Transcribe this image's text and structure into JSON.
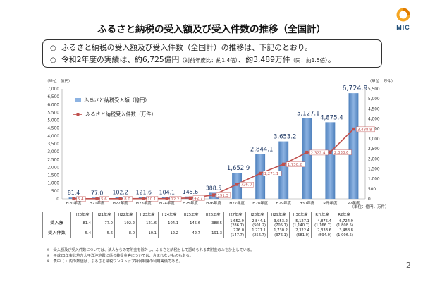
{
  "logo": {
    "text": "MIC"
  },
  "title": "ふるさと納税の受入額及び受入件数の推移（全国計）",
  "summary": [
    {
      "mark": "○",
      "text": "ふるさと納税の受入額及び受入件数（全国計）の推移は、下記のとおり。"
    },
    {
      "mark": "○",
      "text": "令和2年度の実績は、約6,725億円",
      "sub1": "（対前年度比：約1.4倍）",
      "text2": "、約3,489万件",
      "sub2": "（同：約1.5倍）",
      "text3": "。"
    }
  ],
  "chart_data": {
    "type": "bar",
    "categories": [
      "H20年度",
      "H21年度",
      "H22年度",
      "H23年度",
      "H24年度",
      "H25年度",
      "H26年度",
      "H27年度",
      "H28年度",
      "H29年度",
      "H30年度",
      "R元年度",
      "R2年度"
    ],
    "series": [
      {
        "name": "ふるさと納税受入額（億円）",
        "type": "bar",
        "axis": "left",
        "values": [
          81.4,
          77.0,
          102.2,
          121.6,
          104.1,
          145.6,
          388.5,
          1652.9,
          2844.1,
          3653.2,
          5127.1,
          4875.4,
          6724.9
        ],
        "labels": [
          "81.4",
          "77.0",
          "102.2",
          "121.6",
          "104.1",
          "145.6",
          "388.5",
          "1,652.9",
          "2,844.1",
          "3,653.2",
          "5,127.1",
          "4,875.4",
          "6,724.9"
        ]
      },
      {
        "name": "ふるさと納税受入件数（万件）",
        "type": "line",
        "axis": "right",
        "values": [
          5.4,
          5.6,
          8.0,
          10.1,
          12.2,
          42.7,
          191.3,
          726.0,
          1271.1,
          1730.2,
          2322.4,
          2333.6,
          3488.8
        ],
        "labels": [
          "5.4",
          "5.6",
          "8.0",
          "10.1",
          "12.2",
          "42.7",
          "191.3",
          "726.0",
          "1,271.1",
          "1,730.2",
          "2,322.4",
          "2,333.6",
          "3,488.8"
        ]
      }
    ],
    "left_axis": {
      "unit": "（単位：億円）",
      "ticks": [
        "0",
        "500",
        "1,000",
        "1,500",
        "2,000",
        "2,500",
        "3,000",
        "3,500",
        "4,000",
        "4,500",
        "5,000",
        "5,500",
        "6,000",
        "6,500",
        "7,000"
      ],
      "ylim": [
        0,
        7000
      ]
    },
    "right_axis": {
      "unit": "（単位：万件）",
      "ticks": [
        "0",
        "500",
        "1,000",
        "1,500",
        "2,000",
        "2,500",
        "3,000",
        "3,500",
        "4,000",
        "4,500",
        "5,000",
        "5,500"
      ],
      "ylim": [
        0,
        5500
      ]
    },
    "x_unit": "（単位：億円，万件）",
    "legend_position": "top-left",
    "grid": false,
    "colors": {
      "bar": "#8db3e2",
      "bar_dark": "#4f81bd",
      "line": "#c0504d"
    }
  },
  "table": {
    "row_headers": [
      "受入額",
      "受入件数"
    ],
    "amount": [
      "81.4",
      "77.0",
      "102.2",
      "121.6",
      "104.1",
      "145.6",
      "388.5",
      "1,652.9",
      "2,844.1",
      "3,653.2",
      "5,127.1",
      "4,875.4",
      "6,724.9"
    ],
    "amount_ratio": [
      "",
      "",
      "",
      "",
      "",
      "",
      "",
      "(286.7)",
      "(501.2)",
      "(705.7)",
      "(1,140.7)",
      "(1,166.7)",
      "(1,808.5)"
    ],
    "count": [
      "5.4",
      "5.6",
      "8.0",
      "10.1",
      "12.2",
      "42.7",
      "191.3",
      "726.0",
      "1,271.1",
      "1,730.2",
      "2,322.4",
      "2,333.6",
      "3,488.8"
    ],
    "count_ratio": [
      "",
      "",
      "",
      "",
      "",
      "",
      "",
      "(147.7)",
      "(256.7)",
      "(376.1)",
      "(581.0)",
      "(594.0)",
      "(1,006.5)"
    ]
  },
  "notes": [
    "※　受入額及び受入件数については、法人からの寄附金を除外し、ふるさと納税として認められる寄附金のみを計上している。",
    "※　平成23年東北地方太平洋沖地震に係る義援金等については、含まれないものもある。",
    "※　表中（ ）内の数値は、ふるさと納税ワンストップ特例制度の利用実績である。"
  ],
  "page_number": "2"
}
